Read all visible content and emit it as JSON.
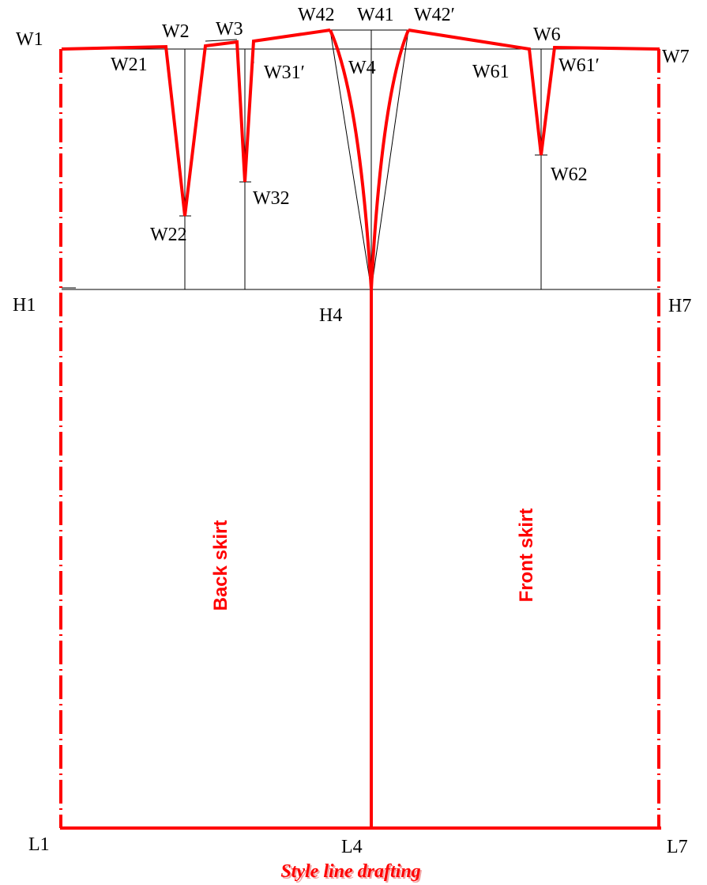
{
  "colors": {
    "pattern_line": "#ff0000",
    "construction_line": "#000000",
    "background": "#ffffff"
  },
  "points": {
    "W1": "W1",
    "W2": "W2",
    "W21": "W21",
    "W22": "W22",
    "W3": "W3",
    "W31p": "W31′",
    "W32": "W32",
    "W4": "W4",
    "W41": "W41",
    "W42": "W42",
    "W42p": "W42′",
    "W6": "W6",
    "W61": "W61",
    "W61p": "W61′",
    "W62": "W62",
    "W7": "W7",
    "H1": "H1",
    "H4": "H4",
    "H7": "H7",
    "L1": "L1",
    "L4": "L4",
    "L7": "L7"
  },
  "panels": {
    "back": "Back skirt",
    "front": "Front skirt"
  },
  "caption": "Style line drafting"
}
